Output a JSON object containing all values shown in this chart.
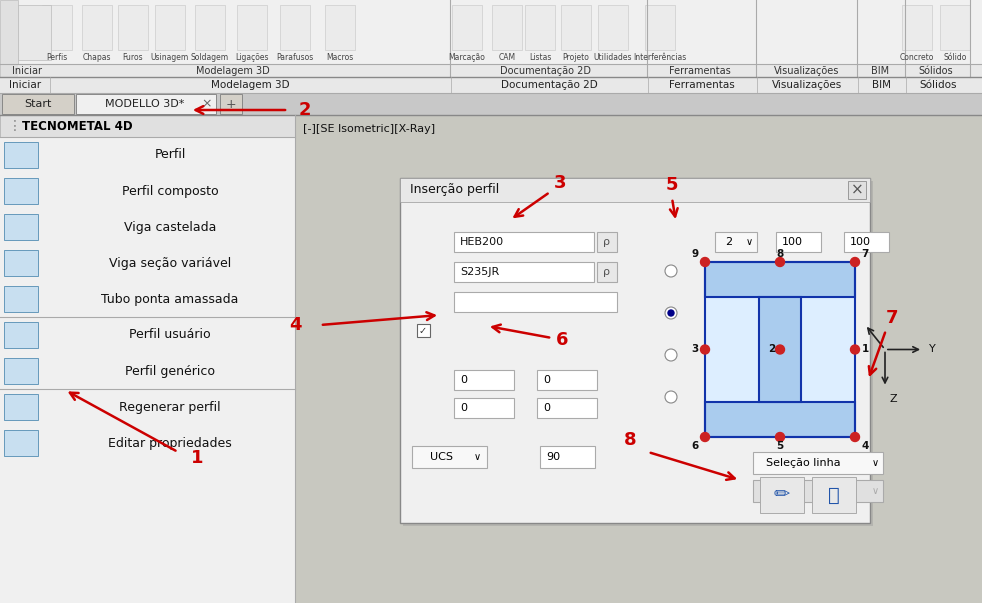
{
  "bg_color": "#d4d0c8",
  "toolbar_bg": "#f0f0f0",
  "sidebar_bg": "#f0f0f0",
  "sidebar_text_color": "#000000",
  "dialog_bg": "#f0f0f0",
  "arrow_color": "#cc0000",
  "number_color": "#cc0000",
  "toolbar_labels": [
    "Perfis",
    "Chapas",
    "Furos",
    "Usinagem",
    "Soldagem",
    "Ligações",
    "Parafusos",
    "Macros",
    "Marcação",
    "CAM",
    "Listas",
    "Projeto",
    "Utilidades",
    "Interferências",
    "Concreto",
    "Sólido"
  ],
  "toolbar_sections": [
    "Iniciar",
    "Modelagem 3D",
    "Documentação 2D",
    "Ferramentas",
    "Visualizações",
    "BIM",
    "Sólidos"
  ],
  "sidebar_title": "TECNOMETAL 4D",
  "sidebar_items": [
    "Perfil",
    "Perfil composto",
    "Viga castelada",
    "Viga seção variável",
    "Tubo ponta amassada",
    "Perfil usuário",
    "Perfil genérico",
    "Regenerar perfil",
    "Editar propriedades"
  ],
  "view_label": "[-][SE Isometric][X-Ray]",
  "dialog_title": "Inserção perfil"
}
